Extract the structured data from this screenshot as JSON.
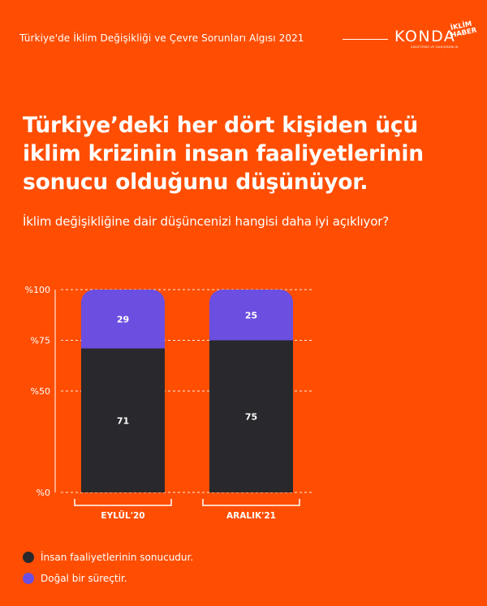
{
  "header": {
    "title": "Türkiye'de İklim Değişikliği ve Çevre Sorunları Algısı 2021",
    "logo_konda": "KONDA",
    "logo_konda_sub": "ARAŞTIRMA VE DANIŞMANLIK",
    "logo_iklim_line1": "İKLİM",
    "logo_iklim_line2": "HABER"
  },
  "headline": "Türkiye’deki her dört kişiden üçü iklim krizinin insan faaliyetlerinin sonucu olduğunu düşünüyor.",
  "subtitle": "İklim değişikliğine dair düşüncenizi hangisi daha iyi açıklıyor?",
  "colors": {
    "background": "#FF4E02",
    "human": "#29282C",
    "natural": "#6C4EE0"
  },
  "chart_data": {
    "type": "bar",
    "stacked": true,
    "categories": [
      "EYLÜL'20",
      "ARALIK'21"
    ],
    "series": [
      {
        "name": "İnsan faaliyetlerinin sonucudur.",
        "values": [
          71,
          75
        ],
        "color": "#29282C"
      },
      {
        "name": "Doğal bir süreçtir.",
        "values": [
          29,
          25
        ],
        "color": "#6C4EE0"
      }
    ],
    "ylim": [
      0,
      100
    ],
    "yticks": [
      0,
      50,
      75,
      100
    ],
    "ytick_labels": [
      "%0",
      "%50",
      "%75",
      "%100"
    ],
    "grid": true,
    "legend": "bottom-left"
  }
}
